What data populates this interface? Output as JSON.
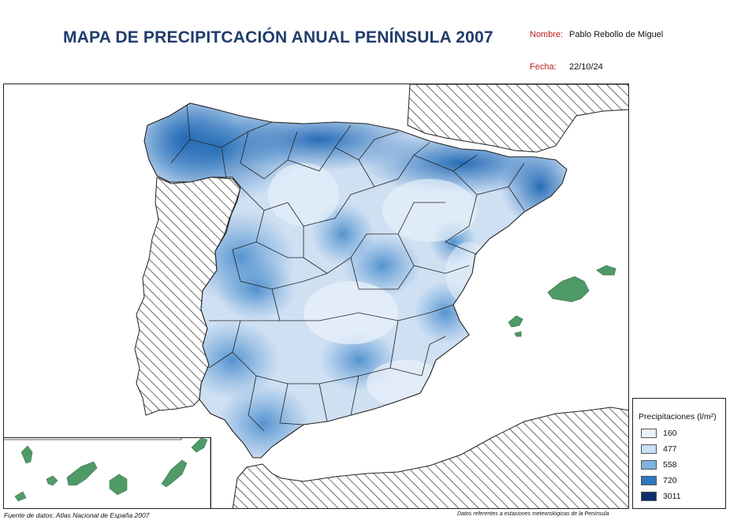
{
  "title": "MAPA DE PRECIPITCACIÓN ANUAL PENÍNSULA 2007",
  "author": {
    "label": "Nombre:",
    "value": "Pablo Rebollo de Miguel"
  },
  "date": {
    "label": "Fecha:",
    "value": "22/10/24"
  },
  "legend": {
    "title": "Precipitaciones (l/m²)",
    "classes": [
      {
        "label": "160",
        "color": "#eaf1fb"
      },
      {
        "label": "477",
        "color": "#c9def3"
      },
      {
        "label": "558",
        "color": "#7fb2df"
      },
      {
        "label": "720",
        "color": "#2e77bf"
      },
      {
        "label": "3011",
        "color": "#0a2f6b"
      }
    ]
  },
  "source_left": "Fuente de datos: Atlas Nacional de España 2007",
  "source_right": "Datos referentes a estaciones meteorológicas de la Península",
  "map": {
    "hatched_areas": [
      "portugal",
      "france",
      "north-africa",
      "balearic-sea-coast"
    ],
    "islands_color": "#4f9a66",
    "land_base_color": "#cfe0f3",
    "wet_color": "#2e77bf"
  }
}
